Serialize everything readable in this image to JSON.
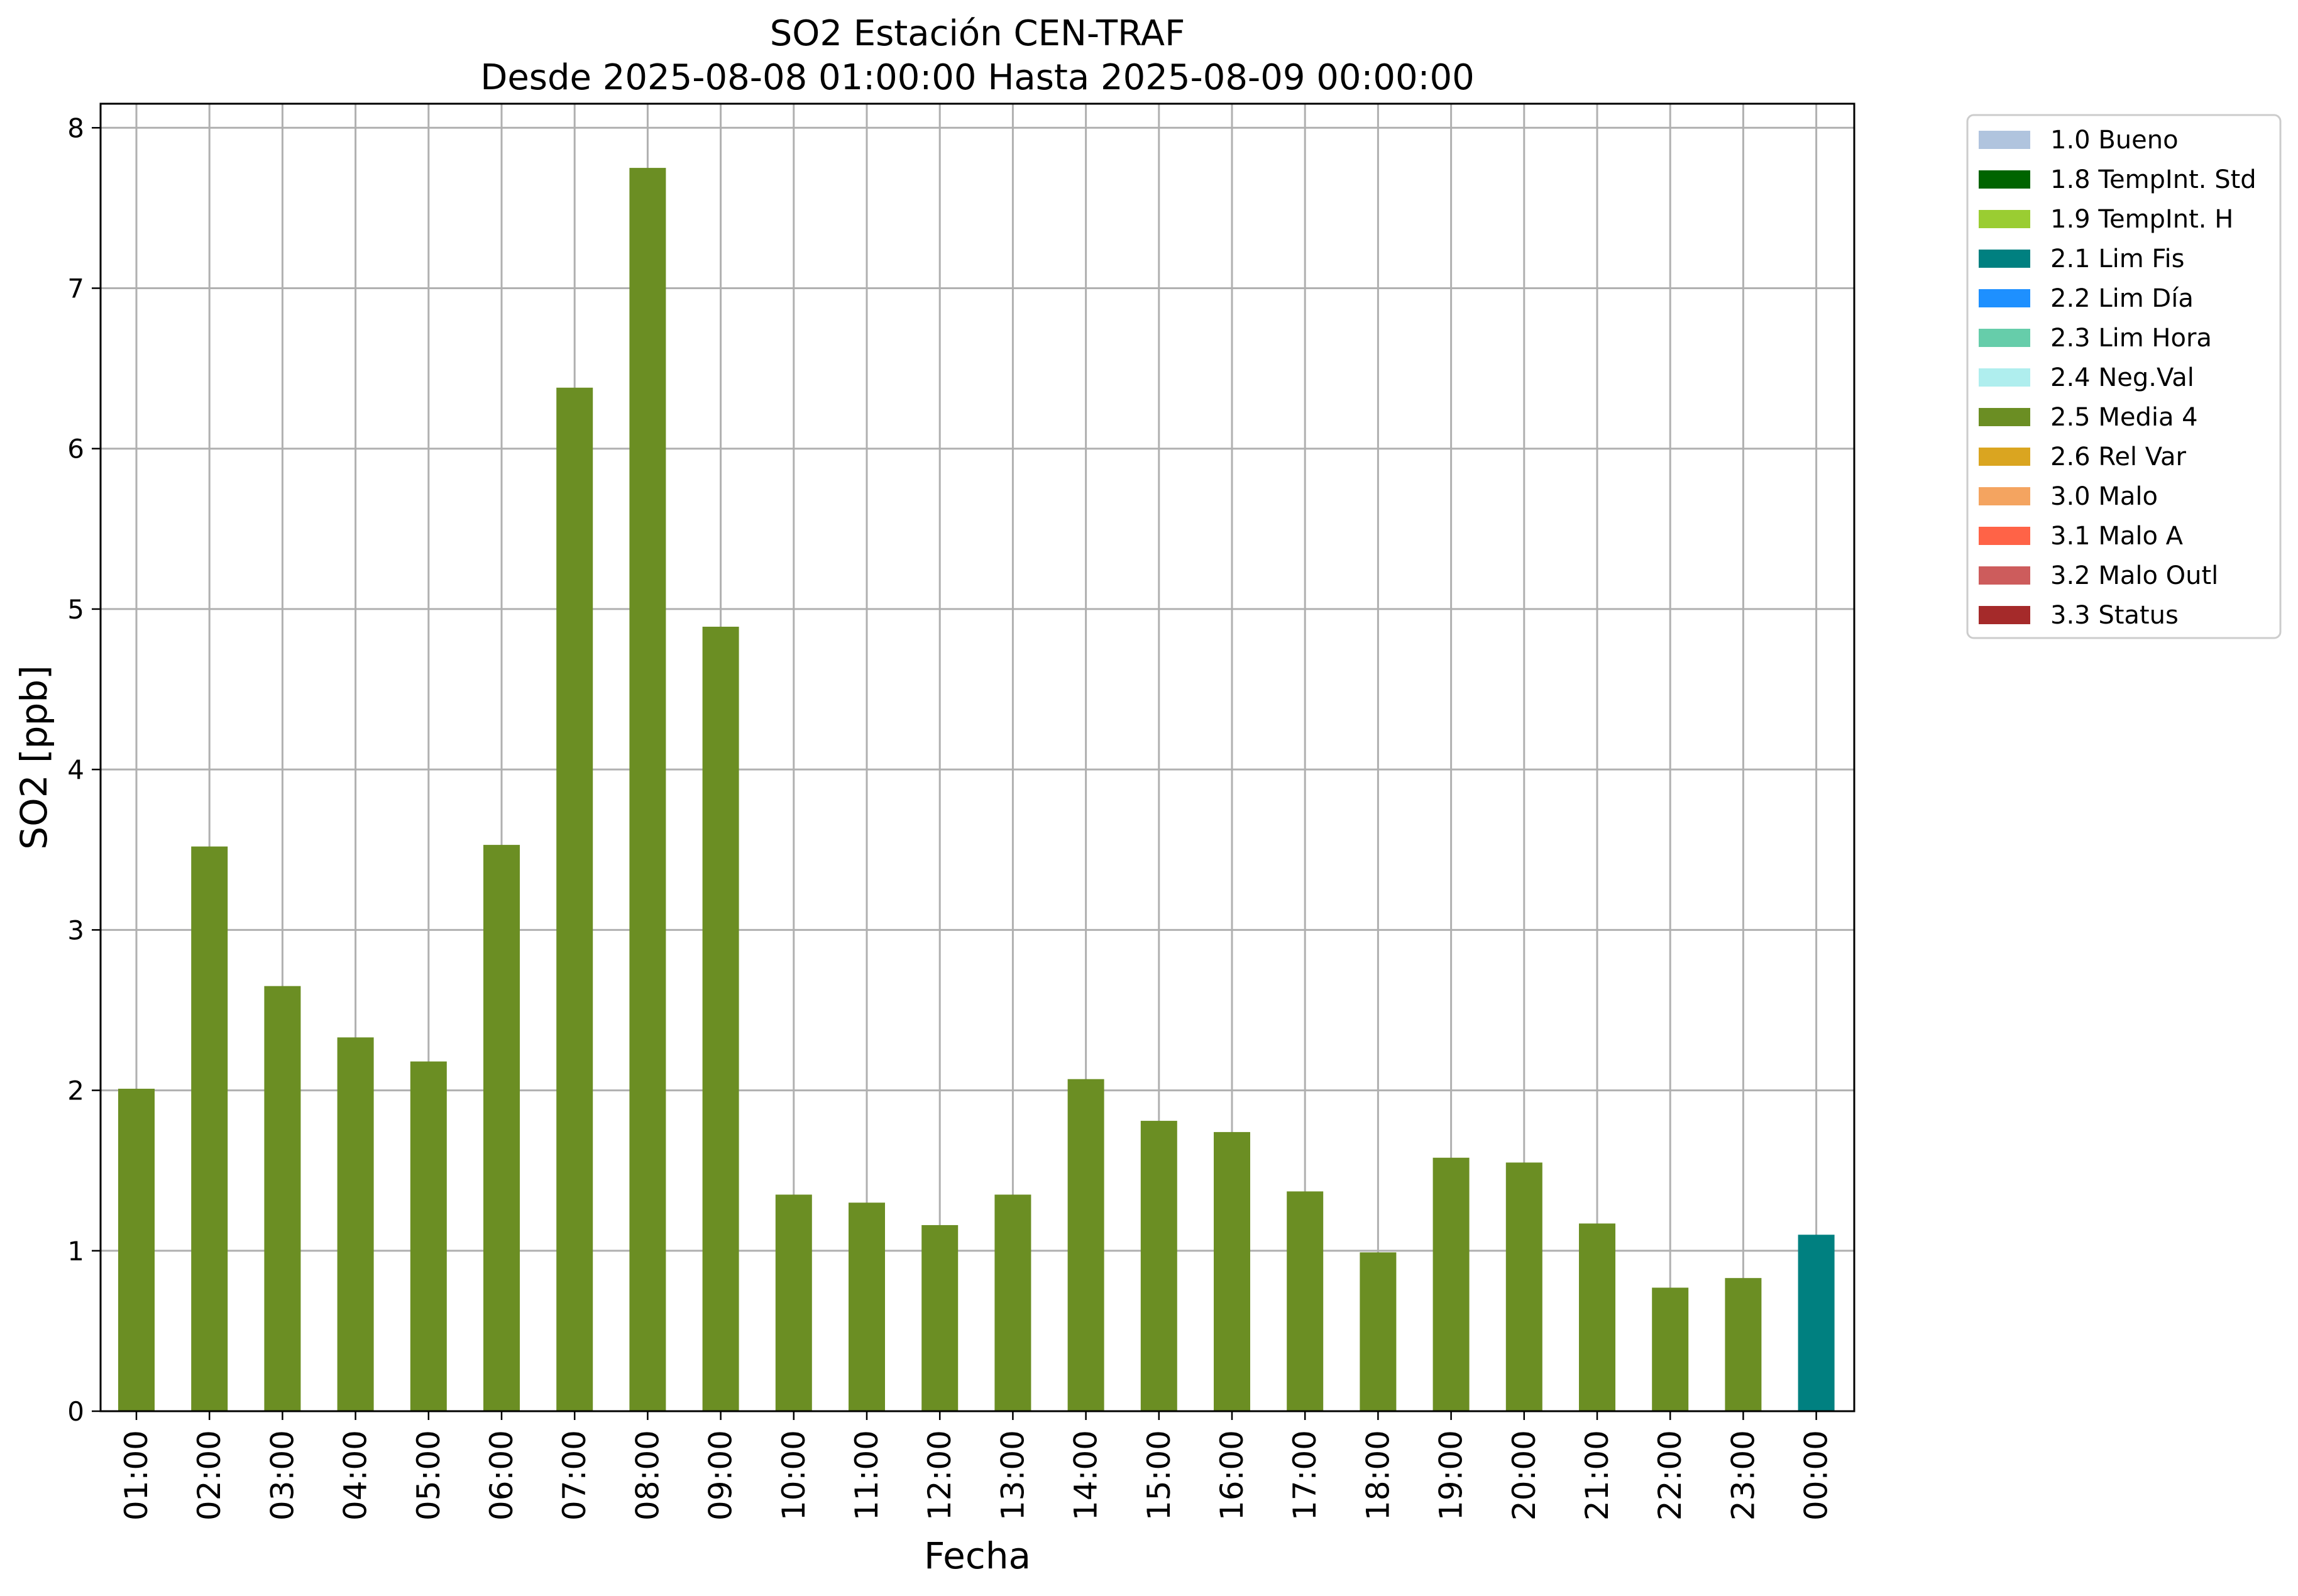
{
  "chart_data": {
    "type": "bar",
    "title": "SO2 Estación CEN-TRAF",
    "subtitle": "Desde 2025-08-08 01:00:00 Hasta 2025-08-09 00:00:00",
    "xlabel": "Fecha",
    "ylabel": "SO2 [ppb]",
    "ylim": [
      0,
      8.15
    ],
    "yticks": [
      0,
      1,
      2,
      3,
      4,
      5,
      6,
      7,
      8
    ],
    "grid": true,
    "legend_position": "outside top-right",
    "categories": [
      "01:00",
      "02:00",
      "03:00",
      "04:00",
      "05:00",
      "06:00",
      "07:00",
      "08:00",
      "09:00",
      "10:00",
      "11:00",
      "12:00",
      "13:00",
      "14:00",
      "15:00",
      "16:00",
      "17:00",
      "18:00",
      "19:00",
      "20:00",
      "21:00",
      "22:00",
      "23:00",
      "00:00"
    ],
    "values": [
      2.01,
      3.52,
      2.65,
      2.33,
      2.18,
      3.53,
      6.38,
      7.75,
      4.89,
      1.35,
      1.3,
      1.16,
      1.35,
      2.07,
      1.81,
      1.74,
      1.37,
      0.99,
      1.58,
      1.55,
      1.17,
      0.77,
      0.83,
      1.1
    ],
    "value_flags": [
      "2.5 Media 4",
      "2.5 Media 4",
      "2.5 Media 4",
      "2.5 Media 4",
      "2.5 Media 4",
      "2.5 Media 4",
      "2.5 Media 4",
      "2.5 Media 4",
      "2.5 Media 4",
      "2.5 Media 4",
      "2.5 Media 4",
      "2.5 Media 4",
      "2.5 Media 4",
      "2.5 Media 4",
      "2.5 Media 4",
      "2.5 Media 4",
      "2.5 Media 4",
      "2.5 Media 4",
      "2.5 Media 4",
      "2.5 Media 4",
      "2.5 Media 4",
      "2.5 Media 4",
      "2.5 Media 4",
      "2.1 Lim Fis"
    ],
    "legend": [
      {
        "label": "1.0 Bueno",
        "color": "#b0c4de"
      },
      {
        "label": "1.8 TempInt. Std",
        "color": "#006400"
      },
      {
        "label": "1.9 TempInt. H",
        "color": "#9acd32"
      },
      {
        "label": "2.1 Lim Fis",
        "color": "#008080"
      },
      {
        "label": "2.2 Lim Día",
        "color": "#1e90ff"
      },
      {
        "label": "2.3 Lim Hora",
        "color": "#66cdaa"
      },
      {
        "label": "2.4 Neg.Val",
        "color": "#afeeee"
      },
      {
        "label": "2.5 Media 4",
        "color": "#6b8e23"
      },
      {
        "label": "2.6 Rel Var",
        "color": "#daa520"
      },
      {
        "label": "3.0 Malo",
        "color": "#f4a460"
      },
      {
        "label": "3.1 Malo A",
        "color": "#ff6347"
      },
      {
        "label": "3.2 Malo Outl",
        "color": "#cd5c5c"
      },
      {
        "label": "3.3 Status",
        "color": "#a52a2a"
      }
    ]
  }
}
